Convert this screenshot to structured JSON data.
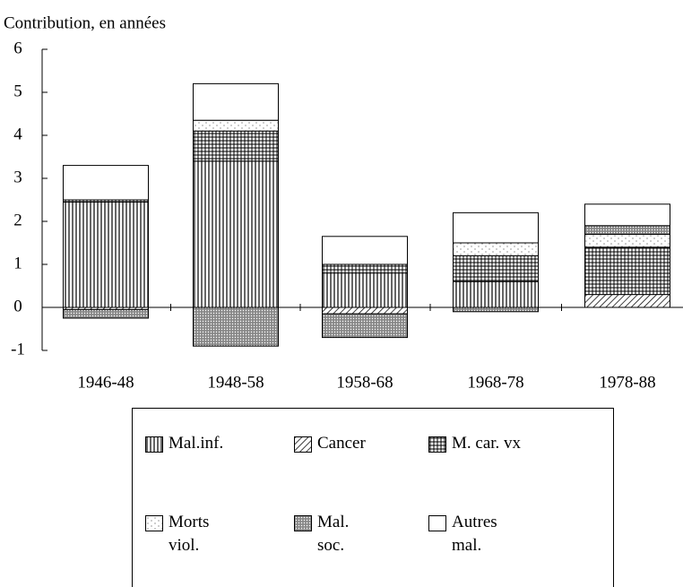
{
  "chart_data": {
    "type": "stacked_bar",
    "y_label": "Contribution, en années",
    "categories": [
      "1946-48",
      "1948-58",
      "1958-68",
      "1968-78",
      "1978-88"
    ],
    "series": [
      {
        "name": "Mal.inf.",
        "color": "vertical",
        "values": [
          2.45,
          3.4,
          0.8,
          0.6,
          0
        ]
      },
      {
        "name": "Cancer",
        "color": "diagonal",
        "values": [
          -0.05,
          0,
          -0.15,
          0,
          0.3
        ]
      },
      {
        "name": "M. car. vx",
        "color": "grid",
        "values": [
          0.05,
          0.7,
          0.2,
          0.6,
          1.1
        ]
      },
      {
        "name": "Morts viol.",
        "color": "dots",
        "values": [
          0,
          0.25,
          0,
          0.3,
          0.3
        ]
      },
      {
        "name": "Mal. soc.",
        "color": "crosshatch",
        "values": [
          -0.2,
          -0.9,
          -0.55,
          -0.1,
          0.2
        ]
      },
      {
        "name": "Autres mal.",
        "color": "white",
        "values": [
          0.8,
          0.85,
          0.65,
          0.7,
          0.5
        ]
      }
    ],
    "ylim": [
      -1,
      6
    ],
    "yticks": [
      -1,
      0,
      1,
      2,
      3,
      4,
      5,
      6
    ]
  }
}
